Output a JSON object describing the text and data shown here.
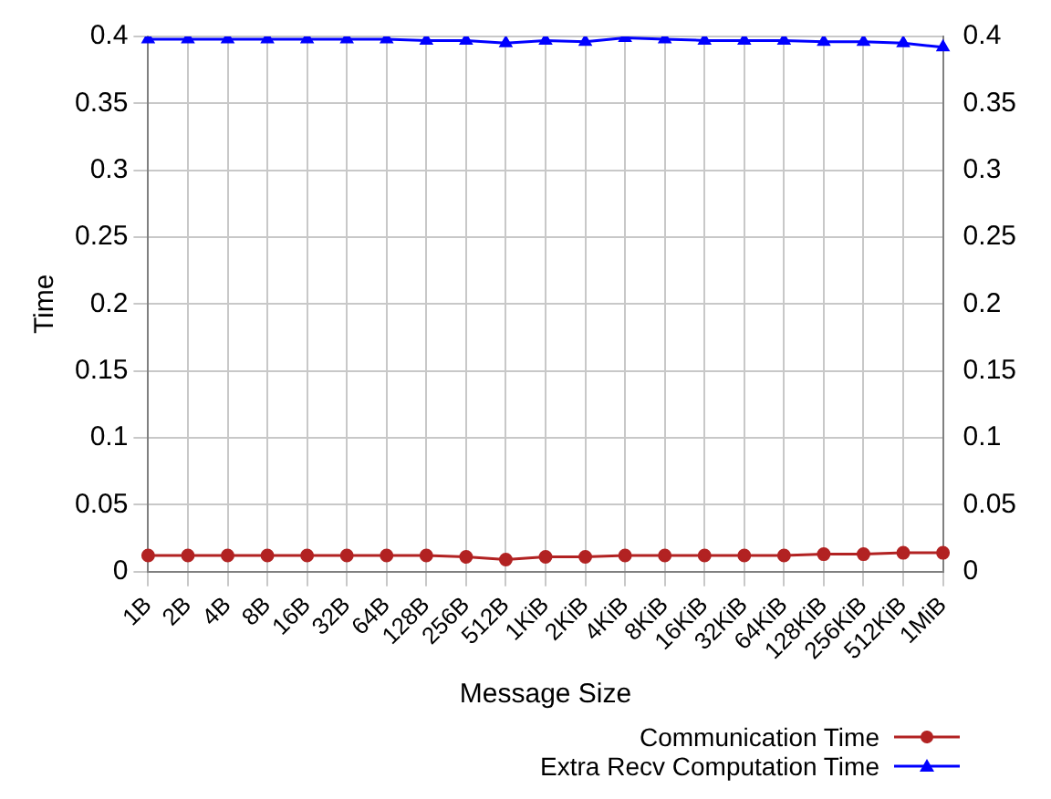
{
  "chart_data": {
    "type": "line",
    "xlabel": "Message Size",
    "ylabel": "Time",
    "categories": [
      "1B",
      "2B",
      "4B",
      "8B",
      "16B",
      "32B",
      "64B",
      "128B",
      "256B",
      "512B",
      "1KiB",
      "2KiB",
      "4KiB",
      "8KiB",
      "16KiB",
      "32KiB",
      "64KiB",
      "128KiB",
      "256KiB",
      "512KiB",
      "1MiB"
    ],
    "series": [
      {
        "name": "Communication Time",
        "color": "#b22222",
        "marker": "circle",
        "values": [
          0.012,
          0.012,
          0.012,
          0.012,
          0.012,
          0.012,
          0.012,
          0.012,
          0.011,
          0.009,
          0.011,
          0.011,
          0.012,
          0.012,
          0.012,
          0.012,
          0.012,
          0.013,
          0.013,
          0.014,
          0.014
        ]
      },
      {
        "name": "Extra Recv Computation Time",
        "color": "#0000ff",
        "marker": "triangle",
        "values": [
          0.398,
          0.398,
          0.398,
          0.398,
          0.398,
          0.398,
          0.398,
          0.397,
          0.397,
          0.395,
          0.397,
          0.396,
          0.399,
          0.398,
          0.397,
          0.397,
          0.397,
          0.396,
          0.396,
          0.395,
          0.392
        ]
      }
    ],
    "ylim": [
      0,
      0.4
    ],
    "yticks": [
      0,
      0.05,
      0.1,
      0.15,
      0.2,
      0.25,
      0.3,
      0.35,
      0.4
    ],
    "y2lim": [
      0,
      0.4
    ],
    "y2ticks": [
      0,
      0.05,
      0.1,
      0.15,
      0.2,
      0.25,
      0.3,
      0.35,
      0.4
    ],
    "grid": true,
    "legend": "bottom right",
    "line_style": "solid"
  }
}
